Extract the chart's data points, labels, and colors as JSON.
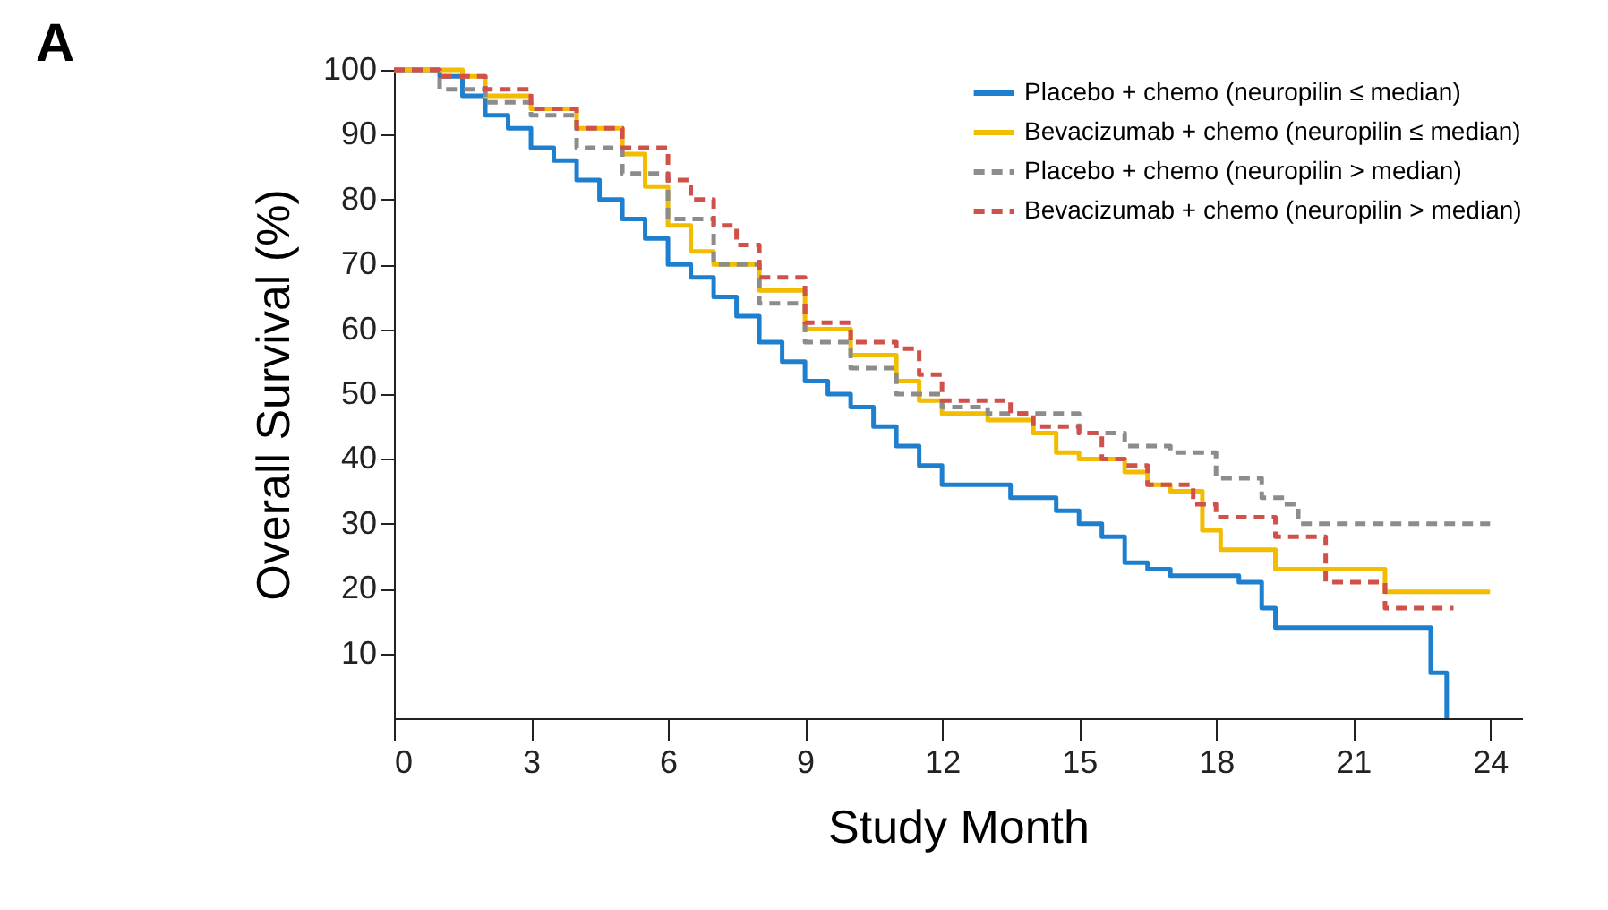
{
  "chart_data": {
    "type": "step",
    "title": "A",
    "xlabel": "Study Month",
    "ylabel": "Overall Survival (%)",
    "xlim": [
      0,
      24.7
    ],
    "xticks": [
      0,
      3,
      6,
      9,
      12,
      15,
      18,
      21,
      24
    ],
    "ylim": [
      0,
      100
    ],
    "yticks": [
      10,
      20,
      30,
      40,
      50,
      60,
      70,
      80,
      90,
      100
    ],
    "grid": false,
    "legend": "top right",
    "marker": "none",
    "series": [
      {
        "name": "Placebo + chemo (neuropilin ≤ median)",
        "color": "#1f7fcf",
        "line_style": "solid",
        "x": [
          0,
          1,
          1.5,
          2,
          2.5,
          3,
          3.5,
          4,
          4.5,
          5,
          5.5,
          6,
          6.5,
          7,
          7.5,
          8,
          8.5,
          9,
          9.5,
          10,
          10.5,
          11,
          11.5,
          12,
          13.5,
          14.5,
          15,
          15.5,
          16,
          16.5,
          17,
          18.5,
          19,
          19.3,
          22.7,
          23.0,
          23.05
        ],
        "values": [
          100,
          99,
          96,
          93,
          91,
          88,
          86,
          83,
          80,
          77,
          74,
          70,
          68,
          65,
          62,
          58,
          55,
          52,
          50,
          48,
          45,
          42,
          39,
          36,
          34,
          32,
          30,
          28,
          24,
          23,
          22,
          21,
          17,
          14,
          7,
          7,
          0
        ]
      },
      {
        "name": "Bevacizumab + chemo (neuropilin ≤ median)",
        "color": "#f2bc00",
        "line_style": "solid",
        "x": [
          0,
          1.5,
          2,
          3,
          4,
          5,
          5.5,
          6,
          6.5,
          7,
          8,
          9,
          10,
          11,
          11.5,
          12,
          13,
          14,
          14.5,
          15,
          16,
          16.5,
          17,
          17.7,
          18.1,
          19.3,
          21.7,
          24
        ],
        "values": [
          100,
          99,
          96,
          94,
          91,
          87,
          82,
          76,
          72,
          70,
          66,
          60,
          56,
          52,
          49,
          47,
          46,
          44,
          41,
          40,
          38,
          36,
          35,
          29,
          26,
          23,
          19.5,
          19.5
        ]
      },
      {
        "name": "Placebo + chemo (neuropilin > median)",
        "color": "#8c8c8c",
        "line_style": "dashed",
        "x": [
          0,
          1,
          2,
          3,
          4,
          5,
          6,
          7,
          8,
          9,
          10,
          11,
          12,
          13,
          15,
          16,
          17,
          18,
          19,
          19.5,
          19.8,
          24
        ],
        "values": [
          100,
          97,
          95,
          93,
          88,
          84,
          77,
          70,
          64,
          58,
          54,
          50,
          48,
          47,
          44,
          42,
          41,
          37,
          34,
          33,
          30,
          30
        ]
      },
      {
        "name": "Bevacizumab + chemo (neuropilin > median)",
        "color": "#d0504a",
        "line_style": "dashed",
        "x": [
          0,
          1,
          2,
          3,
          4,
          5,
          6,
          6.5,
          7,
          7.5,
          8,
          9,
          10,
          11,
          11.5,
          12,
          13.5,
          14,
          15,
          15.5,
          16,
          16.5,
          17.5,
          18,
          19.3,
          20.4,
          21.7,
          23.2
        ],
        "values": [
          100,
          99,
          97,
          94,
          91,
          88,
          83,
          80,
          76,
          73,
          68,
          61,
          58,
          57,
          53,
          49,
          47,
          45,
          44,
          40,
          39,
          36,
          33,
          31,
          28,
          21,
          17,
          17
        ]
      }
    ]
  }
}
